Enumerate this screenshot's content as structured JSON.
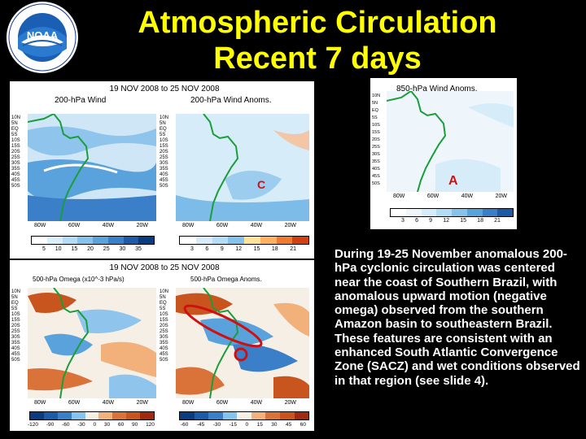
{
  "title": {
    "line1": "Atmospheric Circulation",
    "line2": "Recent 7 days"
  },
  "logo": {
    "name": "noaa-logo",
    "text": "NOAA"
  },
  "top_left_panel": {
    "date_range": "19 NOV 2008 to 25 NOV 2008",
    "left_map_title": "200-hPa Wind",
    "right_map_title": "200-hPa Wind Anoms.",
    "annotation": "C",
    "left_colorbar_labels": [
      "5",
      "10",
      "15",
      "20",
      "25",
      "30",
      "35"
    ],
    "right_colorbar_labels": [
      "3",
      "6",
      "9",
      "12",
      "15",
      "18",
      "21"
    ],
    "lon_labels": [
      "80W",
      "60W",
      "40W",
      "20W"
    ],
    "lat_labels": [
      "10N",
      "5N",
      "EQ",
      "5S",
      "10S",
      "15S",
      "20S",
      "25S",
      "30S",
      "35S",
      "40S",
      "45S",
      "50S"
    ]
  },
  "top_right_panel": {
    "map_title": "850-hPa Wind Anoms.",
    "annotation": "A",
    "colorbar_labels": [
      "3",
      "6",
      "9",
      "12",
      "15",
      "18",
      "21"
    ],
    "lon_labels": [
      "80W",
      "60W",
      "40W",
      "20W"
    ],
    "lat_labels": [
      "10N",
      "5N",
      "EQ",
      "5S",
      "10S",
      "15S",
      "20S",
      "25S",
      "30S",
      "35S",
      "40S",
      "45S",
      "50S"
    ]
  },
  "bottom_left_panel": {
    "date_range": "19 NOV 2008 to 25 NOV 2008",
    "left_map_title": "500-hPa Omega (x10^-3 hPa/s)",
    "right_map_title": "500-hPa Omega Anoms.",
    "left_colorbar_labels": [
      "-120",
      "-90",
      "-60",
      "-30",
      "0",
      "30",
      "60",
      "90",
      "120"
    ],
    "right_colorbar_labels": [
      "-60",
      "-45",
      "-30",
      "-15",
      "0",
      "15",
      "30",
      "45",
      "60"
    ],
    "lon_labels": [
      "80W",
      "60W",
      "40W",
      "20W"
    ],
    "lat_labels": [
      "10N",
      "5N",
      "EQ",
      "5S",
      "10S",
      "15S",
      "20S",
      "25S",
      "30S",
      "35S",
      "40S",
      "45S",
      "50S"
    ]
  },
  "caption": "During 19-25 November anomalous 200-hPa cyclonic circulation was centered near the coast of Southern Brazil, with anomalous upward motion (negative omega) observed from the southern Amazon basin to southeastern Brazil. These features are consistent with an enhanced South Atlantic Convergence Zone (SACZ) and wet conditions observed in that region (see slide 4).",
  "colors": {
    "title": "#ffff00",
    "caption": "#ffffff",
    "background": "#000000",
    "annotation_red": "#d01010"
  }
}
